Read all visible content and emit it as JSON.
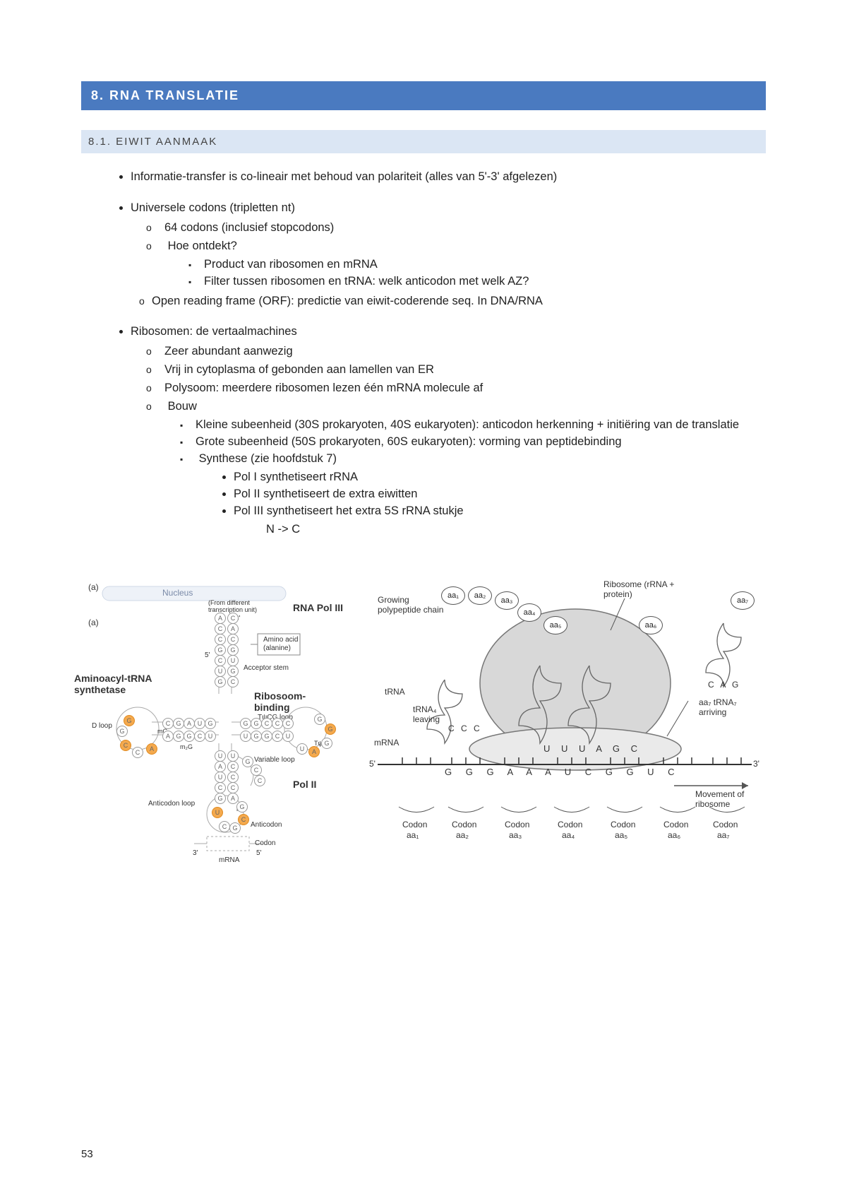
{
  "colors": {
    "h1_bg": "#4a7ac0",
    "h1_fg": "#ffffff",
    "h2_bg": "#dbe6f4",
    "h2_fg": "#444444",
    "page_bg": "#ffffff",
    "text": "#222222"
  },
  "heading1": "8. RNA TRANSLATIE",
  "heading2": "8.1. EIWIT AANMAAK",
  "bullets": {
    "b1": "Informatie-transfer is co-lineair met behoud van polariteit (alles van 5'-3' afgelezen)",
    "b2": "Universele codons (tripletten nt)",
    "b2_1": "64 codons (inclusief stopcodons)",
    "b2_2": "Hoe ontdekt?",
    "b2_2_1": "Product van ribosomen en mRNA",
    "b2_2_2": "Filter tussen ribosomen en tRNA: welk anticodon met welk AZ?",
    "b2_3": "Open reading frame (ORF): predictie van eiwit-coderende seq. In DNA/RNA",
    "b3": "Ribosomen: de vertaalmachines",
    "b3_1": "Zeer abundant aanwezig",
    "b3_2": "Vrij in cytoplasma of gebonden aan lamellen van ER",
    "b3_3": "Polysoom: meerdere ribosomen lezen één mRNA molecule af",
    "b3_4": "Bouw",
    "b3_4_1": "Kleine subeenheid (30S prokaryoten, 40S eukaryoten): anticodon herkenning + initiëring van de translatie",
    "b3_4_2": "Grote subeenheid (50S prokaryoten, 60S eukaryoten): vorming van peptidebinding",
    "b3_4_3": "Synthese (zie hoofdstuk 7)",
    "b3_4_3_1": "Pol I synthetiseert rRNA",
    "b3_4_3_2": "Pol II synthetiseert de extra eiwitten",
    "b3_4_3_3": "Pol III synthetiseert het extra 5S rRNA stukje",
    "nc": "N -> C"
  },
  "figLeft": {
    "nucleus": "Nucleus",
    "transcription_unit": "(From different transcription unit)",
    "rna_pol3": "RNA Pol III",
    "amino_acid": "Amino acid (alanine)",
    "acceptor_stem": "Acceptor stem",
    "aminoacyl": "Aminoacyl-tRNA synthetase",
    "ribosoom": "Ribosoom-binding",
    "tpsi": "TψCG loop",
    "dloop": "D loop",
    "variable": "Variable loop",
    "pol2": "Pol II",
    "anticodon_loop": "Anticodon loop",
    "anticodon": "Anticodon",
    "codon": "Codon",
    "mrna": "mRNA",
    "five": "5'",
    "three": "3'",
    "mg": "mG",
    "m2g": "m₂G",
    "ml": "mI",
    "tpsi2": "Tψ",
    "a_label": "(a)",
    "nucleotides": [
      "A",
      "C",
      "C",
      "A",
      "C",
      "C",
      "G",
      "G",
      "C",
      "U",
      "U",
      "G",
      "G",
      "C",
      "G",
      "U",
      "A",
      "G",
      "C",
      "U",
      "C",
      "G",
      "G",
      "A",
      "G",
      "G",
      "C",
      "C",
      "A",
      "G",
      "G",
      "C",
      "C",
      "C",
      "U",
      "G",
      "G",
      "C",
      "U",
      "G",
      "G",
      "G",
      "A",
      "U",
      "U",
      "U",
      "A",
      "C",
      "U",
      "C",
      "C",
      "C",
      "G",
      "A",
      "U",
      "C",
      "G",
      "C",
      "G",
      "G",
      "C",
      "C",
      "G",
      "I",
      "G",
      "C",
      "C",
      "C",
      "G"
    ]
  },
  "figRight": {
    "ribosome": "Ribosome (rRNA + protein)",
    "growing": "Growing polypeptide chain",
    "trna": "tRNA",
    "trna_leaving": "tRNA₄ leaving",
    "mrna": "mRNA",
    "five": "5'",
    "three": "3'",
    "cag": "C A G",
    "arriving": "aa₇ tRNA₇ arriving",
    "movement": "Movement of ribosome",
    "ccc": "C C C",
    "seq_top": "U U U A G C",
    "seq_bot": "G  G  G  A  A  A  U  C  G  G  U  C",
    "codon": "Codon",
    "aa": [
      "aa₁",
      "aa₂",
      "aa₃",
      "aa₄",
      "aa₅",
      "aa₆",
      "aa₇"
    ]
  },
  "pageNumber": "53"
}
